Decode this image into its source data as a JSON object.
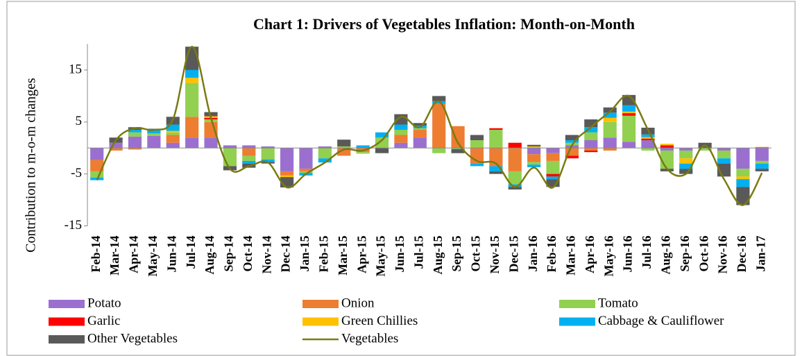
{
  "chart_data": {
    "type": "bar",
    "title": "Chart 1: Drivers of Vegetables Inflation: Month-on-Month",
    "y_label": "Contribution to m-o-m changes",
    "stacked": true,
    "categories": [
      "Feb-14",
      "Mar-14",
      "Apr-14",
      "May-14",
      "Jun-14",
      "Jul-14",
      "Aug-14",
      "Sep-14",
      "Oct-14",
      "Nov-14",
      "Dec-14",
      "Jan-15",
      "Feb-15",
      "Mar-15",
      "Apr-15",
      "May-15",
      "Jun-15",
      "Jul-15",
      "Aug-15",
      "Sep-15",
      "Oct-15",
      "Nov-15",
      "Dec-15",
      "Jan-16",
      "Feb-16",
      "Mar-16",
      "Apr-16",
      "May-16",
      "Jun-16",
      "Jul-16",
      "Aug-16",
      "Sep-16",
      "Oct-16",
      "Nov-16",
      "Dec-16",
      "Jan-17"
    ],
    "series": [
      {
        "name": "Potato",
        "color": "#9b6fcf",
        "values": [
          -2.3,
          1.0,
          2.2,
          2.3,
          1.0,
          2.0,
          2.0,
          0.5,
          0.5,
          0.3,
          -4.5,
          -4.0,
          0.3,
          0,
          0,
          0,
          1.0,
          2.0,
          0,
          0,
          0,
          0,
          0,
          -1.2,
          -1.0,
          0.5,
          1.5,
          2.0,
          1.2,
          1.5,
          -0.5,
          -0.5,
          0,
          -0.5,
          -4.0,
          -2.5
        ]
      },
      {
        "name": "Onion",
        "color": "#ed7d31",
        "values": [
          -2.2,
          -0.5,
          -0.3,
          0,
          1.5,
          4.0,
          3.0,
          0,
          -1.5,
          0,
          -0.8,
          -0.5,
          0,
          -1.5,
          -0.8,
          0,
          1.5,
          1.5,
          8.5,
          4.2,
          -3.0,
          -3.5,
          -4.5,
          -1.5,
          -1.5,
          -1.5,
          -0.5,
          -0.5,
          0,
          0,
          0,
          0,
          0,
          0,
          0,
          0.2
        ]
      },
      {
        "name": "Tomato",
        "color": "#92d050",
        "values": [
          -1.2,
          0,
          0.8,
          0.5,
          0.5,
          6.5,
          0.5,
          -3.5,
          -1.0,
          -2.2,
          0,
          -0.3,
          -2.0,
          0.3,
          -0.3,
          2.0,
          1.0,
          0.3,
          -1.0,
          -0.2,
          1.5,
          3.5,
          -2.5,
          -0.5,
          -2.5,
          0.5,
          1.5,
          3.0,
          5.0,
          -0.5,
          -3.5,
          -1.5,
          -0.5,
          -1.5,
          -1.5,
          -0.5
        ]
      },
      {
        "name": "Garlic",
        "color": "#ff0000",
        "values": [
          0,
          0,
          0,
          0,
          0,
          0,
          0.3,
          0,
          0,
          0,
          0,
          0,
          0,
          0,
          0,
          0,
          0,
          0,
          0,
          0,
          0,
          0.3,
          1.0,
          0,
          -0.5,
          -0.5,
          -0.3,
          0,
          0.5,
          0.3,
          0.5,
          0,
          0,
          0,
          0,
          0
        ]
      },
      {
        "name": "Green Chillies",
        "color": "#ffc000",
        "values": [
          0,
          0,
          0,
          0,
          0.3,
          1.0,
          0.3,
          0,
          0,
          0,
          -0.3,
          0,
          0,
          0,
          0,
          0,
          0,
          0,
          0,
          0,
          0,
          0,
          0,
          0.3,
          0,
          0,
          0,
          0.8,
          0.3,
          0.3,
          0.3,
          -1.0,
          0,
          0,
          -0.5,
          0
        ]
      },
      {
        "name": "Cabbage & Cauliflower",
        "color": "#00b0f0",
        "values": [
          -0.5,
          0,
          0.5,
          0.6,
          1.2,
          1.5,
          0,
          0,
          -0.5,
          -0.5,
          0,
          -0.5,
          -0.8,
          0,
          0.5,
          1.0,
          1.0,
          0.5,
          0.5,
          0,
          -0.5,
          -1.0,
          -0.5,
          -0.5,
          -0.5,
          0.5,
          1.0,
          1.0,
          1.2,
          0.5,
          0,
          -1.0,
          0,
          -1.0,
          -1.5,
          -1.0
        ]
      },
      {
        "name": "Other Vegetables",
        "color": "#595959",
        "values": [
          0,
          1.0,
          0.5,
          0.3,
          1.5,
          4.5,
          0.8,
          -0.8,
          -0.8,
          -0.3,
          -2.0,
          0,
          0,
          1.3,
          0,
          -1.0,
          2.0,
          0.5,
          1.0,
          -0.8,
          1.0,
          -0.5,
          -0.5,
          0.3,
          -1.5,
          1.0,
          1.5,
          1.0,
          2.0,
          1.3,
          -0.5,
          -1.0,
          1.0,
          -2.5,
          -3.5,
          -0.5
        ]
      }
    ],
    "line": {
      "name": "Vegetables",
      "color": "#7a7a10",
      "values": [
        -6.2,
        1.5,
        3.8,
        3.5,
        5.5,
        19.5,
        5.8,
        -4.0,
        -3.5,
        -2.8,
        -7.6,
        -5.0,
        -2.8,
        -0.3,
        -0.5,
        1.5,
        6.0,
        4.0,
        9.0,
        1.0,
        -2.5,
        -3.0,
        -7.5,
        -3.8,
        -7.6,
        0.5,
        4.0,
        7.0,
        10.0,
        3.5,
        -4.0,
        -5.0,
        0.5,
        -6.0,
        -11.0,
        -4.8
      ]
    },
    "ylim": [
      -15,
      20
    ],
    "yticks": [
      -15,
      -5,
      5,
      15
    ]
  }
}
